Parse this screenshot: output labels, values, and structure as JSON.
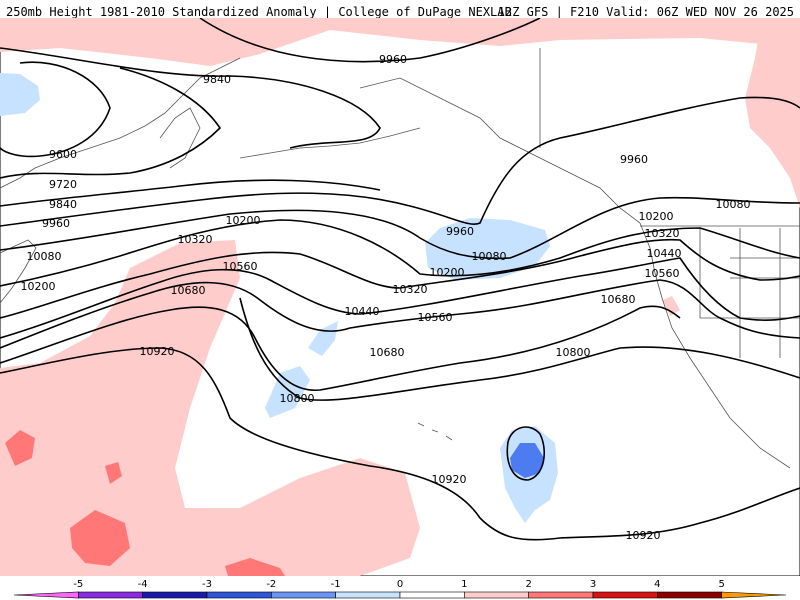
{
  "header": {
    "title": "250mb Height 1981-2010 Standardized Anomaly | College of DuPage NEXLAB",
    "valid": "12Z GFS | F210 Valid: 06Z WED NOV 26 2025"
  },
  "colors": {
    "pos1": "#ffcccc",
    "pos2": "#ff7777",
    "neg1": "#c7e2ff",
    "neg2": "#4d7cf0",
    "contour": "#000000"
  },
  "contour_labels": [
    {
      "id": "9960-a",
      "text": "9960"
    },
    {
      "id": "9840",
      "text": "9840"
    },
    {
      "id": "9600",
      "text": "9600"
    },
    {
      "id": "9720",
      "text": "9720"
    },
    {
      "id": "9840-b",
      "text": "9840"
    },
    {
      "id": "9960-b",
      "text": "9960"
    },
    {
      "id": "10080-a",
      "text": "10080"
    },
    {
      "id": "10200-a",
      "text": "10200"
    },
    {
      "id": "10200-b",
      "text": "10200"
    },
    {
      "id": "10320-a",
      "text": "10320"
    },
    {
      "id": "10560-a",
      "text": "10560"
    },
    {
      "id": "10680-a",
      "text": "10680"
    },
    {
      "id": "10920-a",
      "text": "10920"
    },
    {
      "id": "9960-c",
      "text": "9960"
    },
    {
      "id": "10080-b",
      "text": "10080"
    },
    {
      "id": "10200-c",
      "text": "10200"
    },
    {
      "id": "10320-b",
      "text": "10320"
    },
    {
      "id": "10440-a",
      "text": "10440"
    },
    {
      "id": "10560-b",
      "text": "10560"
    },
    {
      "id": "10680-b",
      "text": "10680"
    },
    {
      "id": "10800-a",
      "text": "10800"
    },
    {
      "id": "10800-b",
      "text": "10800"
    },
    {
      "id": "10920-b",
      "text": "10920"
    },
    {
      "id": "10920-c",
      "text": "10920"
    },
    {
      "id": "9960-d",
      "text": "9960"
    },
    {
      "id": "10080-c",
      "text": "10080"
    },
    {
      "id": "10200-d",
      "text": "10200"
    },
    {
      "id": "10320-c",
      "text": "10320"
    },
    {
      "id": "10440-b",
      "text": "10440"
    },
    {
      "id": "10560-c",
      "text": "10560"
    },
    {
      "id": "10680-c",
      "text": "10680"
    }
  ],
  "colorbar": {
    "ticks": [
      "-5",
      "-4",
      "-3",
      "-2",
      "-1",
      "0",
      "1",
      "2",
      "3",
      "4",
      "5"
    ],
    "colors": [
      "#ff66ff",
      "#8a2be2",
      "#1a1aa8",
      "#2f56d6",
      "#6b95f2",
      "#c7e2ff",
      "#ffffff",
      "#ffcccc",
      "#ff7777",
      "#d61414",
      "#8b0000",
      "#ff9900"
    ]
  }
}
